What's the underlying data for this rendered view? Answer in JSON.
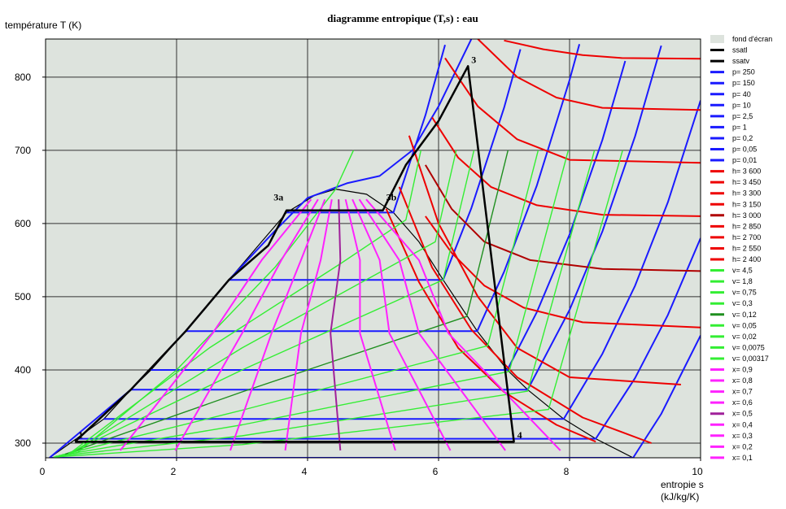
{
  "chart_data": {
    "type": "line",
    "title": "diagramme entropique (T,s) : eau",
    "ylabel": "température  T  (K)",
    "xlabel": [
      "entropie  s",
      "(kJ/kg/K)"
    ],
    "xlim": [
      0,
      10
    ],
    "ylim": [
      280,
      852
    ],
    "xticks": [
      0,
      2,
      4,
      6,
      8,
      10
    ],
    "yticks": [
      300,
      400,
      500,
      600,
      700,
      800
    ],
    "grid": true,
    "background": {
      "name": "fond d'écran",
      "color": "#dde3dd"
    },
    "series": [
      {
        "name": "ssatl",
        "color": "#000000",
        "x": [
          0.06,
          0.47,
          0.89,
          1.3,
          1.61,
          2.14,
          2.8,
          3.68,
          4.1,
          4.43
        ],
        "values": [
          280,
          306,
          333,
          373,
          400,
          453,
          523,
          615,
          638,
          647
        ]
      },
      {
        "name": "ssatv",
        "color": "#000000",
        "x": [
          4.43,
          4.9,
          5.31,
          5.7,
          6.07,
          6.59,
          7.05,
          7.36,
          7.91,
          8.4,
          8.97
        ],
        "values": [
          647,
          640,
          615,
          575,
          523,
          453,
          400,
          373,
          333,
          306,
          280
        ]
      },
      {
        "name": "p= 250",
        "color": "#1a1aff",
        "x": [
          0.06,
          1.3,
          2.14,
          2.8,
          3.5,
          4.0,
          4.6,
          5.1,
          5.6,
          6.0,
          6.5
        ],
        "values": [
          280,
          373,
          453,
          523,
          590,
          635,
          655,
          665,
          700,
          760,
          852
        ]
      },
      {
        "name": "p= 150",
        "color": "#1a1aff",
        "x": [
          3.68,
          5.31,
          5.8,
          6.1
        ],
        "values": [
          615,
          615,
          748,
          844
        ]
      },
      {
        "name": "p= 40",
        "color": "#1a1aff",
        "x": [
          2.8,
          6.07,
          6.5,
          7.0,
          7.25
        ],
        "values": [
          523,
          523,
          621,
          758,
          838
        ]
      },
      {
        "name": "p= 10",
        "color": "#1a1aff",
        "x": [
          2.14,
          6.59,
          7.0,
          7.5,
          8.0,
          8.15
        ],
        "values": [
          453,
          453,
          534,
          652,
          796,
          845
        ]
      },
      {
        "name": "p= 2,5",
        "color": "#1a1aff",
        "x": [
          1.61,
          7.05,
          7.5,
          8.0,
          8.5,
          8.85
        ],
        "values": [
          400,
          400,
          479,
          585,
          714,
          822
        ]
      },
      {
        "name": "p= 1",
        "color": "#1a1aff",
        "x": [
          1.3,
          7.36,
          8.0,
          8.5,
          9.0,
          9.4
        ],
        "values": [
          373,
          373,
          482,
          589,
          719,
          843
        ]
      },
      {
        "name": "p= 0,2",
        "color": "#1a1aff",
        "x": [
          0.89,
          7.91,
          8.5,
          9.0,
          9.5,
          10
        ],
        "values": [
          333,
          333,
          422,
          515,
          629,
          768
        ]
      },
      {
        "name": "p= 0,05",
        "color": "#1a1aff",
        "x": [
          0.47,
          8.4,
          9.0,
          9.5,
          10
        ],
        "values": [
          306,
          306,
          389,
          475,
          580
        ]
      },
      {
        "name": "p= 0,01",
        "color": "#1a1aff",
        "x": [
          0.06,
          8.97,
          9.4,
          10
        ],
        "values": [
          280,
          280,
          340,
          447
        ]
      },
      {
        "name": "h= 3 600",
        "color": "#ee0000",
        "x": [
          7.0,
          7.6,
          8.2,
          8.8,
          10
        ],
        "values": [
          850,
          838,
          830,
          826,
          825
        ]
      },
      {
        "name": "h= 3 450",
        "color": "#ee0000",
        "x": [
          6.6,
          7.2,
          7.8,
          8.5,
          10
        ],
        "values": [
          852,
          800,
          772,
          758,
          755
        ]
      },
      {
        "name": "h= 3 300",
        "color": "#ee0000",
        "x": [
          6.1,
          6.6,
          7.2,
          8.0,
          10
        ],
        "values": [
          826,
          760,
          715,
          687,
          683
        ]
      },
      {
        "name": "h= 3 150",
        "color": "#ee0000",
        "x": [
          5.9,
          6.3,
          6.8,
          7.5,
          8.5,
          10
        ],
        "values": [
          745,
          690,
          650,
          625,
          612,
          610
        ]
      },
      {
        "name": "h= 3 000",
        "color": "#b00000",
        "x": [
          5.8,
          6.2,
          6.7,
          7.4,
          8.5,
          10
        ],
        "values": [
          680,
          620,
          575,
          550,
          538,
          535
        ]
      },
      {
        "name": "h= 2 850",
        "color": "#ee0000",
        "x": [
          5.8,
          6.2,
          6.7,
          7.3,
          8.2,
          10
        ],
        "values": [
          610,
          560,
          515,
          485,
          465,
          458
        ]
      },
      {
        "name": "h= 2 700",
        "color": "#ee0000",
        "x": [
          5.55,
          6.0,
          6.6,
          7.2,
          8.0,
          9.7
        ],
        "values": [
          720,
          600,
          500,
          430,
          390,
          380
        ]
      },
      {
        "name": "h= 2 550",
        "color": "#ee0000",
        "x": [
          5.4,
          5.9,
          6.5,
          7.2,
          8.2,
          9.25
        ],
        "values": [
          650,
          540,
          455,
          390,
          335,
          300
        ]
      },
      {
        "name": "h= 2 400",
        "color": "#ee0000",
        "x": [
          5.2,
          5.7,
          6.3,
          7.0,
          7.8,
          8.4
        ],
        "values": [
          620,
          520,
          430,
          370,
          325,
          302
        ]
      },
      {
        "name": "v= 4,5",
        "color": "#33ee33",
        "x": [
          0.12,
          3.0,
          7.68,
          8.81
        ],
        "values": [
          281,
          298,
          346,
          700
        ]
      },
      {
        "name": "v= 1,8",
        "color": "#33ee33",
        "x": [
          0.15,
          3.0,
          7.36,
          8.38
        ],
        "values": [
          282,
          310,
          371,
          700
        ]
      },
      {
        "name": "v= 0,75",
        "color": "#33ee33",
        "x": [
          0.2,
          3.0,
          7.08,
          7.98
        ],
        "values": [
          283,
          325,
          398,
          700
        ]
      },
      {
        "name": "v= 0,3",
        "color": "#33ee33",
        "x": [
          0.25,
          3.0,
          6.75,
          7.52
        ],
        "values": [
          284,
          345,
          433,
          700
        ]
      },
      {
        "name": "v= 0,12",
        "color": "#1f8f1f",
        "x": [
          0.3,
          3.0,
          6.43,
          7.06
        ],
        "values": [
          285,
          370,
          473,
          700
        ]
      },
      {
        "name": "v= 0,05",
        "color": "#33ee33",
        "x": [
          0.35,
          3.0,
          6.07,
          6.54
        ],
        "values": [
          286,
          400,
          523,
          700
        ]
      },
      {
        "name": "v= 0,02",
        "color": "#33ee33",
        "x": [
          0.4,
          3.0,
          5.95,
          6.27
        ],
        "values": [
          287,
          430,
          575,
          700
        ]
      },
      {
        "name": "v= 0,0075",
        "color": "#33ee33",
        "x": [
          0.4,
          2.5,
          4.5,
          5.5,
          5.73
        ],
        "values": [
          288,
          430,
          545,
          605,
          700
        ]
      },
      {
        "name": "v= 0,00317",
        "color": "#33ee33",
        "x": [
          0.5,
          2.0,
          3.5,
          4.43,
          4.7
        ],
        "values": [
          288,
          400,
          540,
          647,
          700
        ]
      },
      {
        "name": "x= 0,9",
        "color": "#ff22ff",
        "x": [
          4.895,
          5.7,
          6.15,
          7.86
        ],
        "values": [
          633,
          550,
          450,
          290
        ]
      },
      {
        "name": "x= 0,8",
        "color": "#ff22ff",
        "x": [
          4.79,
          5.4,
          5.7,
          7.02
        ],
        "values": [
          633,
          550,
          450,
          290
        ]
      },
      {
        "name": "x= 0,7",
        "color": "#ff22ff",
        "x": [
          4.685,
          5.1,
          5.25,
          6.18
        ],
        "values": [
          633,
          550,
          450,
          290
        ]
      },
      {
        "name": "x= 0,6",
        "color": "#ff22ff",
        "x": [
          4.58,
          4.8,
          4.8,
          5.34
        ],
        "values": [
          633,
          550,
          450,
          290
        ]
      },
      {
        "name": "x= 0,5",
        "color": "#a0209a",
        "x": [
          4.475,
          4.5,
          4.35,
          4.5
        ],
        "values": [
          633,
          550,
          450,
          290
        ]
      },
      {
        "name": "x= 0,4",
        "color": "#ff22ff",
        "x": [
          4.37,
          4.2,
          3.9,
          3.66
        ],
        "values": [
          633,
          550,
          450,
          290
        ]
      },
      {
        "name": "x= 0,3",
        "color": "#ff22ff",
        "x": [
          4.265,
          3.9,
          3.45,
          2.82
        ],
        "values": [
          633,
          550,
          450,
          290
        ]
      },
      {
        "name": "x= 0,2",
        "color": "#ff22ff",
        "x": [
          4.16,
          3.6,
          3.0,
          1.98
        ],
        "values": [
          633,
          550,
          450,
          290
        ]
      },
      {
        "name": "x= 0,1",
        "color": "#ff22ff",
        "x": [
          4.055,
          3.3,
          2.55,
          1.14
        ],
        "values": [
          633,
          550,
          450,
          290
        ]
      }
    ],
    "cycle": {
      "color": "#000000",
      "x": [
        0.45,
        1.3,
        2.14,
        2.8,
        3.4,
        3.68,
        5.15,
        5.5,
        6.0,
        6.45,
        7.15,
        0.45
      ],
      "values": [
        302,
        373,
        453,
        523,
        570,
        618,
        618,
        680,
        740,
        815,
        302,
        302
      ],
      "labels": [
        "1",
        null,
        null,
        null,
        null,
        "3a",
        "3b",
        null,
        null,
        "3",
        "4",
        null
      ]
    }
  }
}
